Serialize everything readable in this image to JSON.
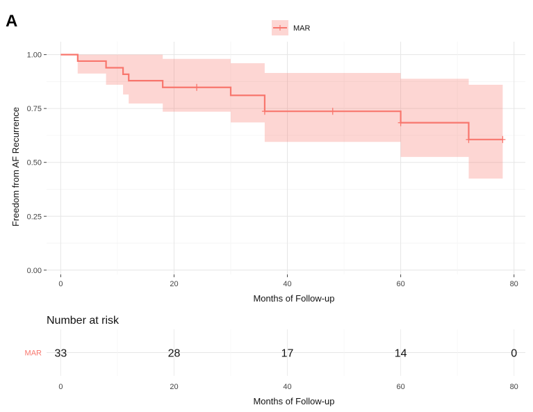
{
  "panel_label": "A",
  "chart_data": [
    {
      "type": "line",
      "subtype": "kaplan-meier",
      "xlabel": "Months of Follow-up",
      "ylabel": "Freedom from AF Recurrence",
      "xlim": [
        -2.5,
        82
      ],
      "ylim": [
        -0.02,
        1.06
      ],
      "xticks": [
        0,
        20,
        40,
        60,
        80
      ],
      "yticks": [
        0.0,
        0.25,
        0.5,
        0.75,
        1.0
      ],
      "ytick_labels": [
        "0.00",
        "0.25",
        "0.50",
        "0.75",
        "1.00"
      ],
      "grid": true,
      "legend_position": "top-center",
      "series": [
        {
          "name": "MAR",
          "color": "#F8766D",
          "band_color": "#F8766D",
          "band_opacity": 0.3,
          "steps": [
            {
              "x": 0,
              "y": 1.0,
              "lower": 1.0,
              "upper": 1.0
            },
            {
              "x": 3,
              "y": 0.97,
              "lower": 0.912,
              "upper": 1.0
            },
            {
              "x": 8,
              "y": 0.939,
              "lower": 0.86,
              "upper": 1.0
            },
            {
              "x": 11,
              "y": 0.909,
              "lower": 0.815,
              "upper": 1.0
            },
            {
              "x": 12,
              "y": 0.879,
              "lower": 0.773,
              "upper": 1.0
            },
            {
              "x": 18,
              "y": 0.848,
              "lower": 0.735,
              "upper": 0.98
            },
            {
              "x": 30,
              "y": 0.811,
              "lower": 0.685,
              "upper": 0.96
            },
            {
              "x": 36,
              "y": 0.737,
              "lower": 0.595,
              "upper": 0.915
            },
            {
              "x": 60,
              "y": 0.684,
              "lower": 0.525,
              "upper": 0.888
            },
            {
              "x": 72,
              "y": 0.606,
              "lower": 0.425,
              "upper": 0.86
            }
          ],
          "end_x": 78,
          "censor_x": [
            24,
            36,
            48,
            60,
            72,
            78
          ]
        }
      ]
    },
    {
      "type": "table",
      "title": "Number at risk",
      "xlabel": "Months of Follow-up",
      "xlim": [
        -2.5,
        82
      ],
      "xticks": [
        0,
        20,
        40,
        60,
        80
      ],
      "rows": [
        {
          "label": "MAR",
          "color": "#F8766D",
          "x": [
            0,
            20,
            40,
            60,
            80
          ],
          "values": [
            33,
            28,
            17,
            14,
            0
          ]
        }
      ]
    }
  ]
}
